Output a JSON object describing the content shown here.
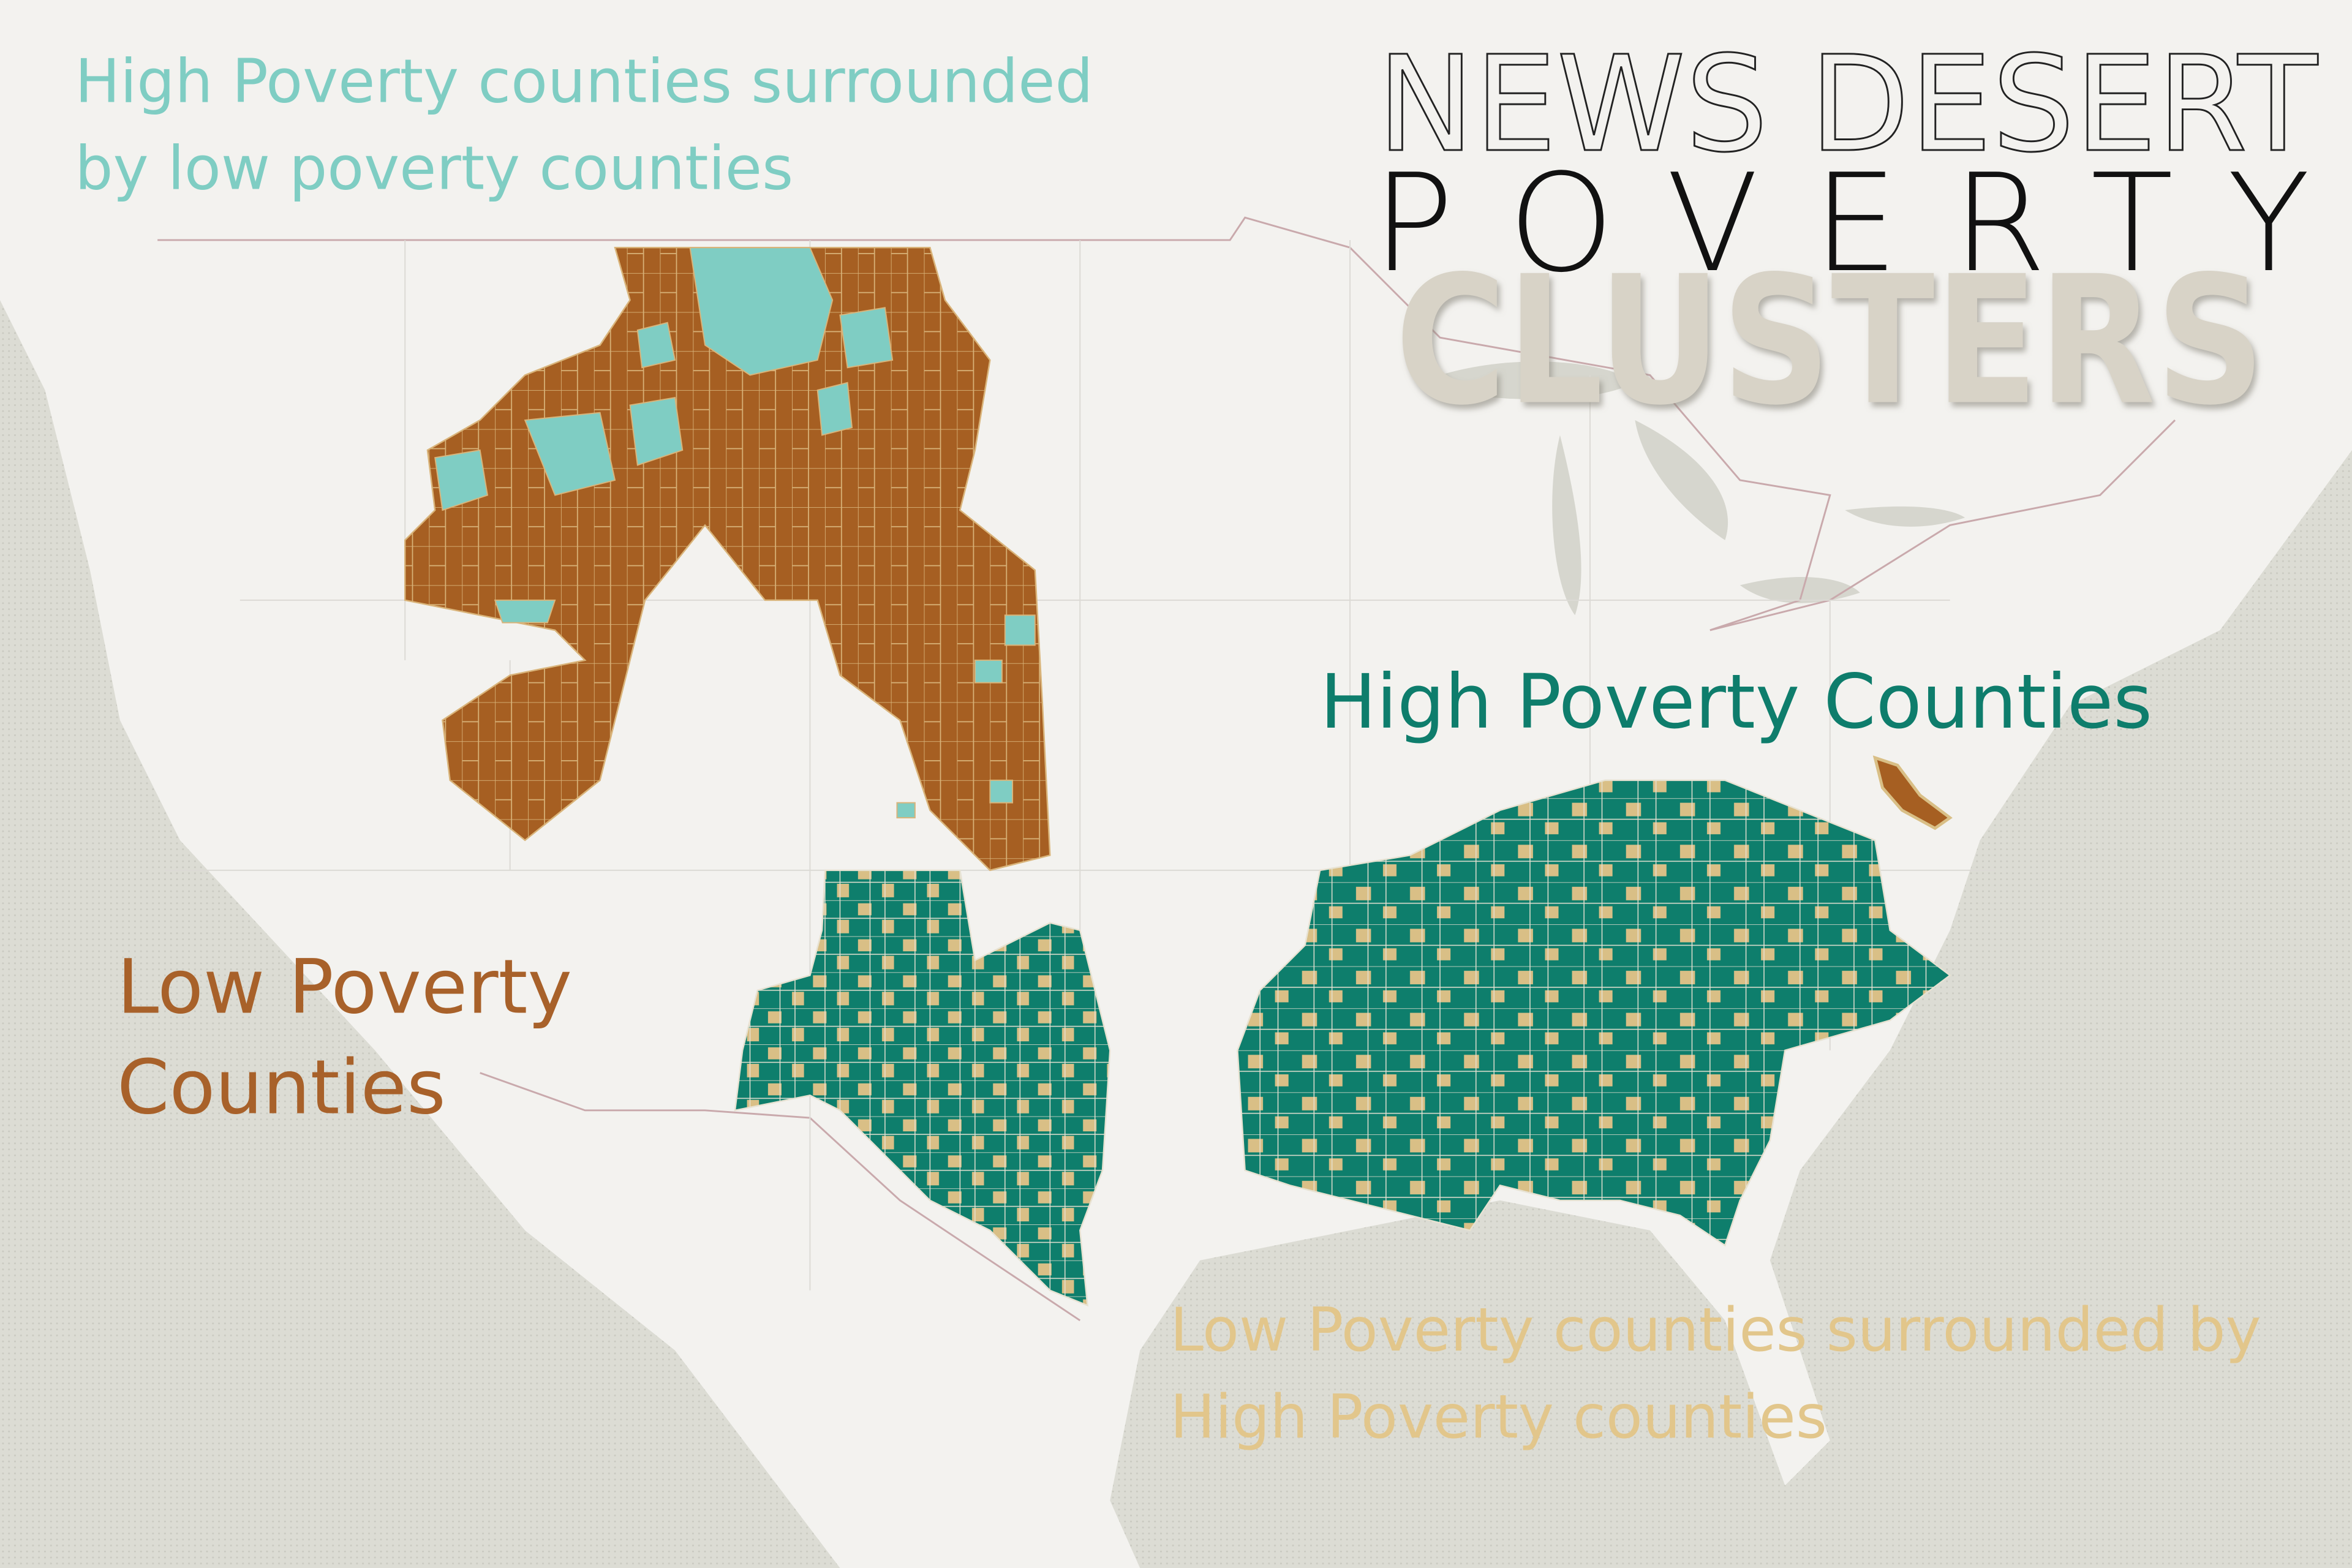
{
  "title": {
    "line1": "NEWS DESERT",
    "line2": "POVERTY",
    "line3": "CLUSTERS"
  },
  "labels": {
    "high_surrounded_by_low": [
      "High Poverty counties surrounded",
      "by low poverty counties"
    ],
    "low_poverty": [
      "Low Poverty",
      "Counties"
    ],
    "high_poverty": [
      "High Poverty Counties"
    ],
    "low_surrounded_by_high": [
      "Low Poverty counties surrounded by",
      "High Poverty counties"
    ]
  }
}
